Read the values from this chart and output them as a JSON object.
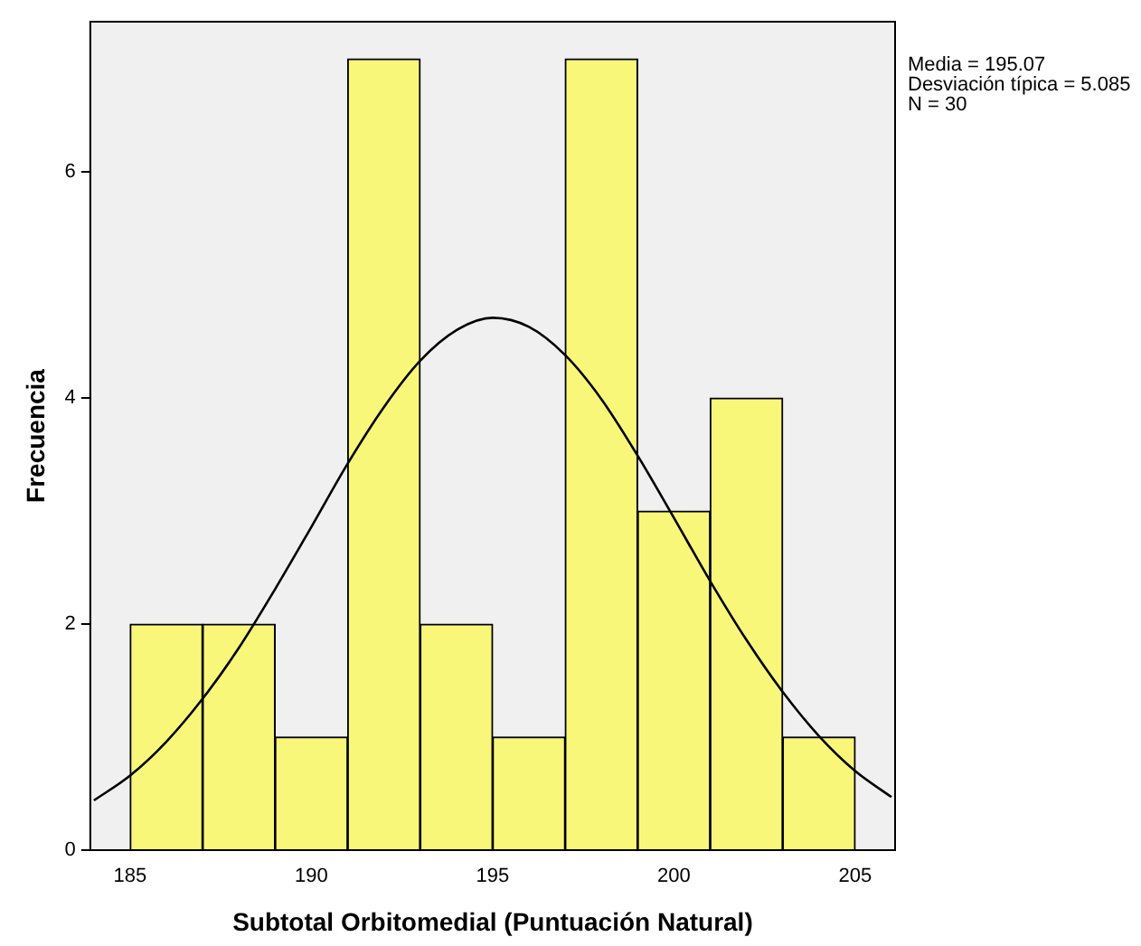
{
  "chart_data": {
    "type": "histogram",
    "xlabel": "Subtotal Orbitomedial (Puntuación Natural)",
    "ylabel": "Frecuencia",
    "bins": [
      185,
      187,
      189,
      191,
      193,
      195,
      197,
      199,
      201,
      203,
      205
    ],
    "values": [
      2,
      2,
      1,
      7,
      2,
      1,
      7,
      3,
      4,
      1
    ],
    "color": "#f8f77a",
    "xlim": [
      183.9,
      206.1
    ],
    "xticks": [
      185,
      190,
      195,
      200,
      205
    ],
    "ylim": [
      0,
      7.33
    ],
    "yticks": [
      0,
      2,
      4,
      6
    ],
    "grid": false,
    "legend": false,
    "series": [
      {
        "type": "line",
        "color": "#000000",
        "x": [
          184,
          185,
          186,
          187,
          188,
          189,
          190,
          191,
          192,
          193,
          194,
          195,
          196,
          197,
          198,
          199,
          200,
          201,
          202,
          203,
          204,
          205,
          206
        ],
        "values": [
          0.44,
          0.66,
          0.96,
          1.34,
          1.79,
          2.31,
          2.86,
          3.42,
          3.92,
          4.33,
          4.6,
          4.71,
          4.63,
          4.38,
          3.99,
          3.49,
          2.94,
          2.38,
          1.86,
          1.4,
          1.01,
          0.7,
          0.47
        ]
      }
    ],
    "annotations": [
      "Media = 195.07",
      "Desviación típica = 5.085",
      "N = 30"
    ]
  }
}
